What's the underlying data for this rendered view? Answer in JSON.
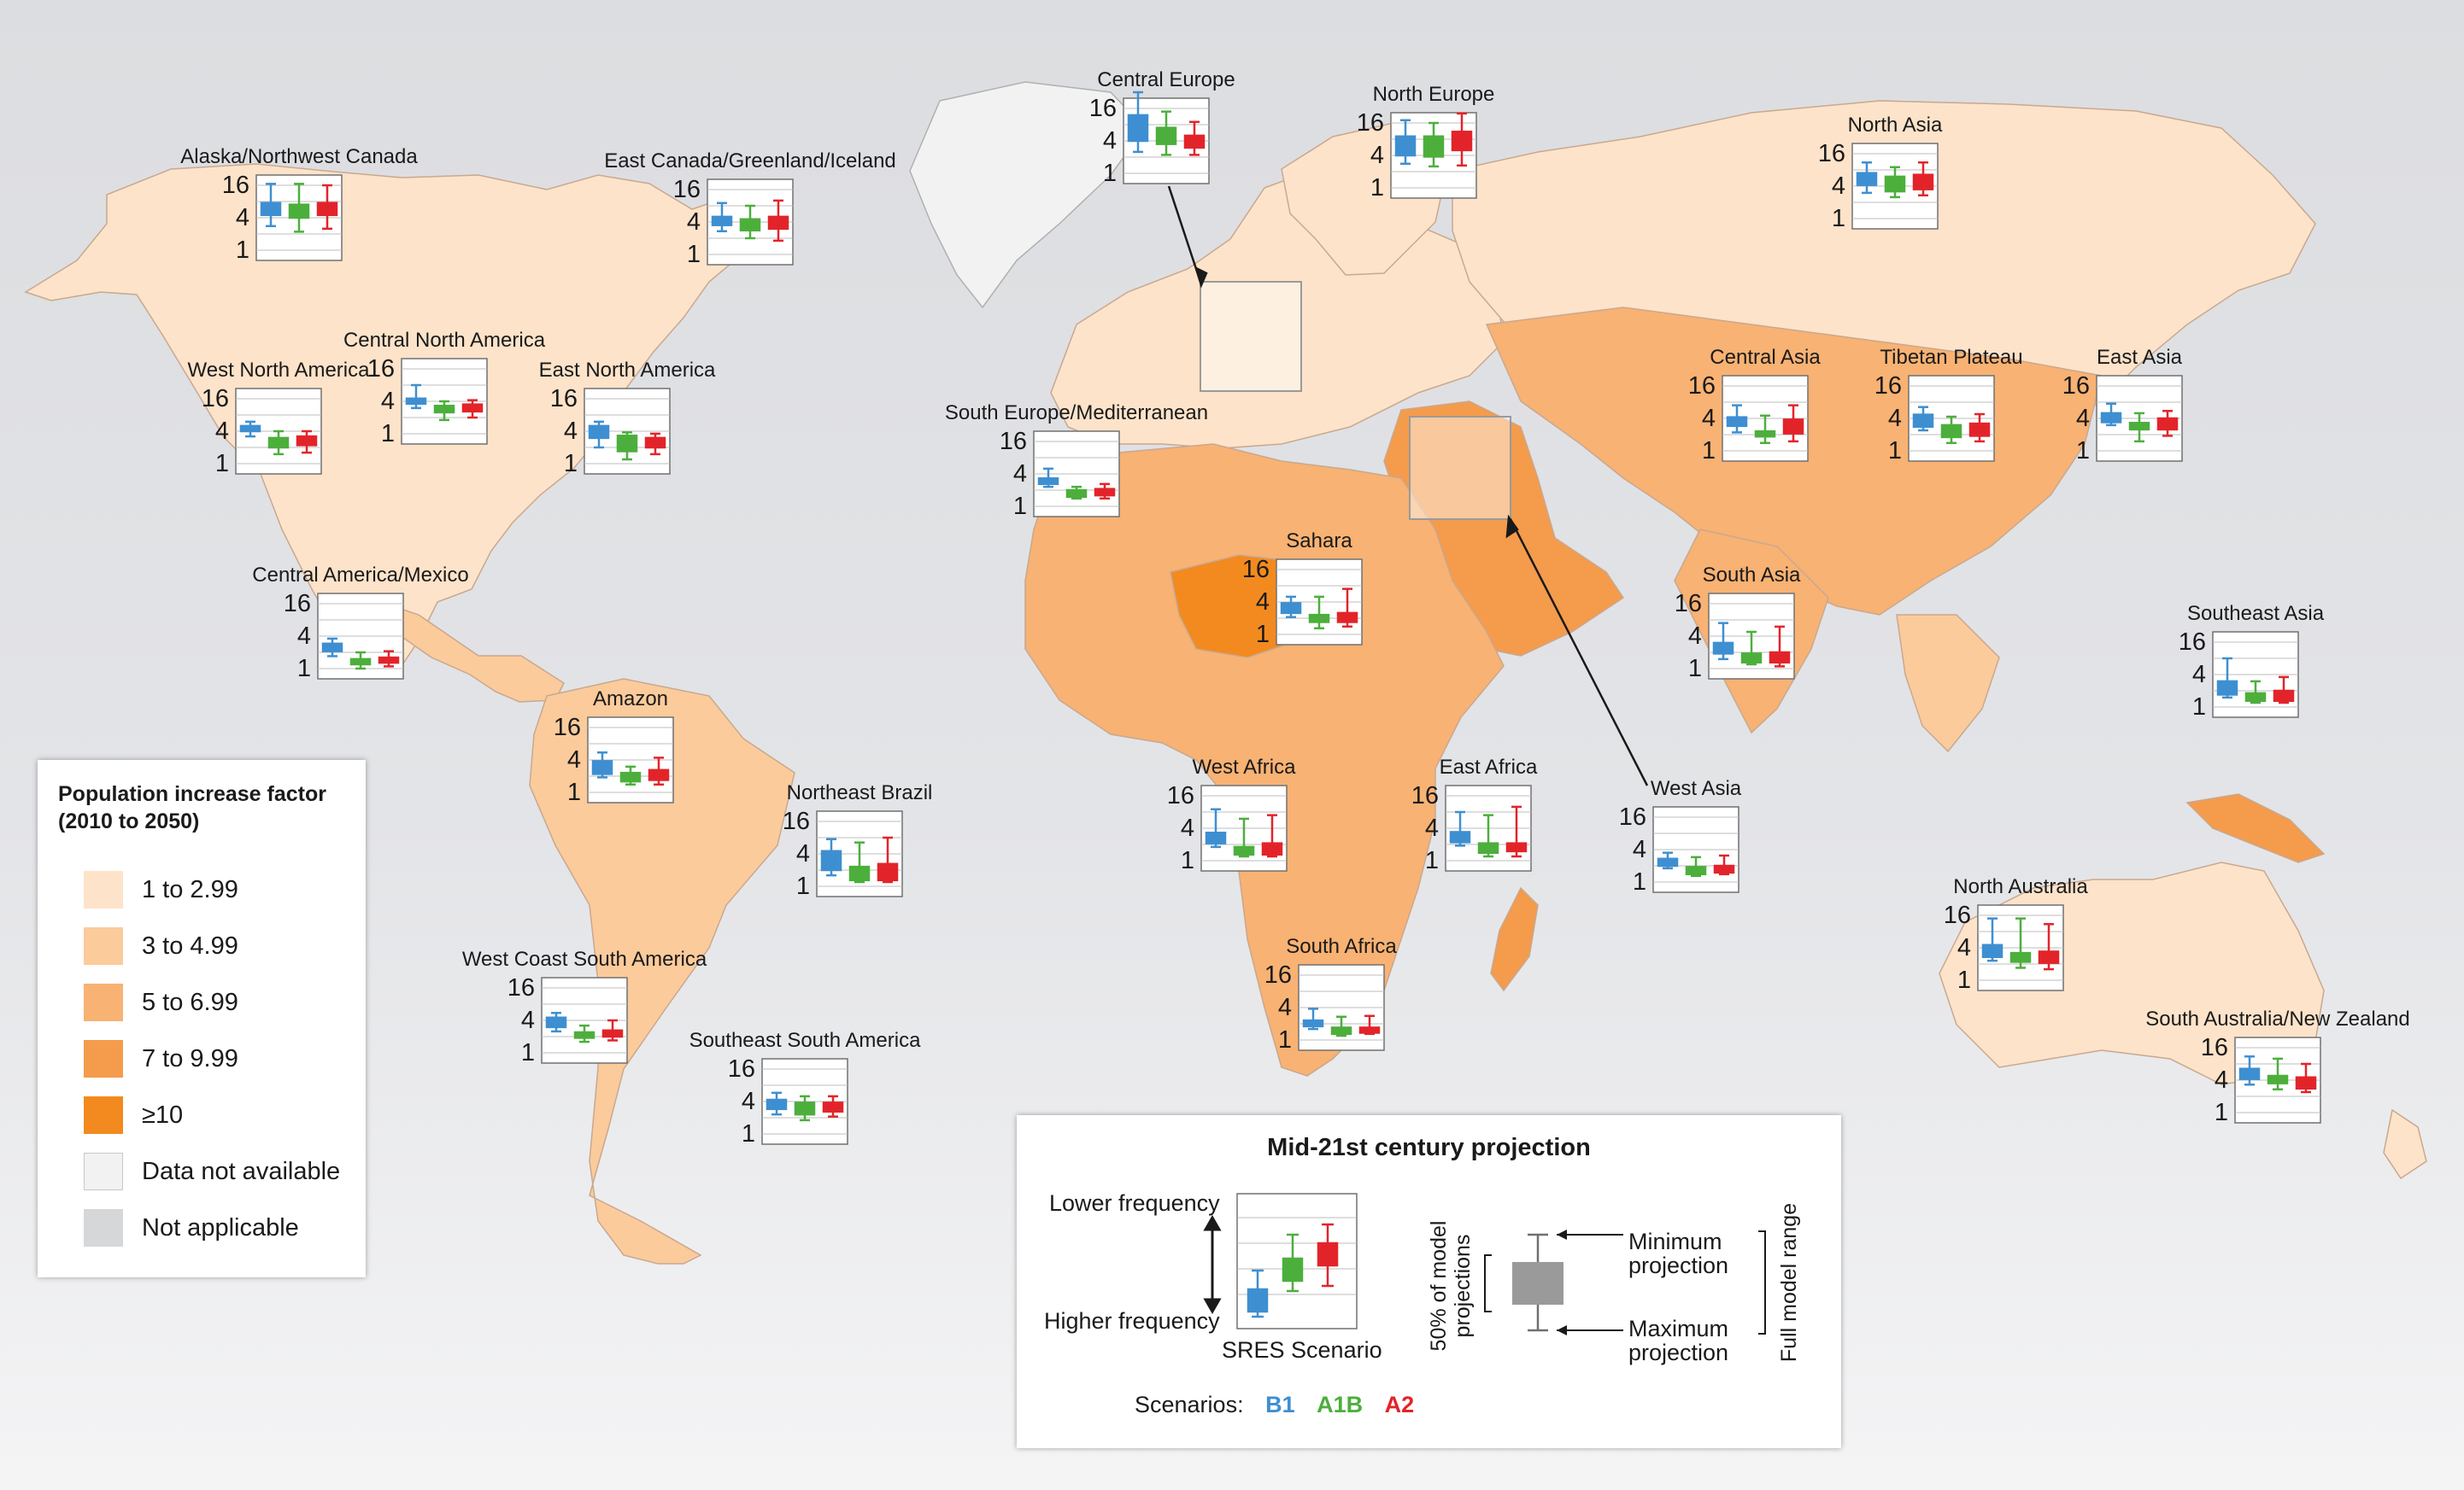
{
  "colors": {
    "ocean": "#e0e1e4",
    "c1": "#fde3c9",
    "c2": "#fbcb9b",
    "c3": "#f8b273",
    "c4": "#f59b4c",
    "c5": "#f28a1f",
    "na": "#f2f2f2",
    "notapp": "#d6d7d9",
    "b1": "#3e8fd1",
    "a1b": "#4caf3c",
    "a2": "#e2242a"
  },
  "legend": {
    "title_line1": "Population increase factor",
    "title_line2": "(2010 to 2050)",
    "items": [
      {
        "label": "1 to 2.99",
        "color": "#fde3c9"
      },
      {
        "label": "3 to 4.99",
        "color": "#fbcb9b"
      },
      {
        "label": "5 to 6.99",
        "color": "#f8b273"
      },
      {
        "label": "7 to 9.99",
        "color": "#f59b4c"
      },
      {
        "label": "≥10",
        "color": "#f28a1f"
      },
      {
        "label": "Data not available",
        "color": "#f2f2f2"
      },
      {
        "label": "Not applicable",
        "color": "#d6d7d9"
      }
    ]
  },
  "explainer": {
    "title": "Mid-21st century projection",
    "lower": "Lower frequency",
    "higher": "Higher frequency",
    "sres": "SRES Scenario",
    "fifty_line1": "50% of model",
    "fifty_line2": "projections",
    "min_line1": "Minimum",
    "min_line2": "projection",
    "max_line1": "Maximum",
    "max_line2": "projection",
    "full_range": "Full model range",
    "scenarios_label": "Scenarios:",
    "b1": "B1",
    "a1b": "A1B",
    "a2": "A2"
  },
  "chart_data": {
    "type": "box",
    "y_scale": "log2",
    "yticks": [
      "16",
      "4",
      "1"
    ],
    "scenarios": [
      "B1",
      "A1B",
      "A2"
    ],
    "regions": [
      {
        "name": "Alaska/Northwest Canada",
        "boxes": [
          [
            2.8,
            4.5,
            7.5,
            17
          ],
          [
            2.2,
            4,
            7,
            17
          ],
          [
            2.5,
            4.5,
            7.5,
            16
          ]
        ]
      },
      {
        "name": "East Canada/Greenland/Iceland",
        "boxes": [
          [
            2.7,
            3.5,
            5,
            9
          ],
          [
            2,
            2.8,
            4.5,
            8
          ],
          [
            1.8,
            3,
            5,
            10
          ]
        ]
      },
      {
        "name": "Central Europe",
        "boxes": [
          [
            2.5,
            4,
            12,
            32
          ],
          [
            2.2,
            3.5,
            7,
            14
          ],
          [
            2.2,
            3,
            5,
            9
          ]
        ]
      },
      {
        "name": "North Europe",
        "boxes": [
          [
            2.8,
            4,
            9,
            18
          ],
          [
            2.5,
            3.8,
            9,
            16
          ],
          [
            2.6,
            5,
            11,
            24
          ]
        ]
      },
      {
        "name": "North Asia",
        "boxes": [
          [
            3,
            4.2,
            7,
            11
          ],
          [
            2.5,
            3.2,
            6,
            9
          ],
          [
            2.7,
            3.5,
            6.5,
            11
          ]
        ]
      },
      {
        "name": "West North America",
        "boxes": [
          [
            3.2,
            4,
            5,
            6
          ],
          [
            1.5,
            2,
            3,
            4
          ],
          [
            1.6,
            2.2,
            3.2,
            4
          ]
        ]
      },
      {
        "name": "Central North America",
        "boxes": [
          [
            3,
            3.8,
            4.5,
            8
          ],
          [
            1.8,
            2.5,
            3.3,
            4
          ],
          [
            2,
            2.6,
            3.5,
            4.2
          ]
        ]
      },
      {
        "name": "East North America",
        "boxes": [
          [
            2,
            3,
            5,
            6
          ],
          [
            1.2,
            1.7,
            3.3,
            3.8
          ],
          [
            1.5,
            2,
            3,
            3.6
          ]
        ]
      },
      {
        "name": "Central America/Mexico",
        "boxes": [
          [
            1.7,
            2.1,
            2.9,
            3.6
          ],
          [
            1,
            1.2,
            1.5,
            2
          ],
          [
            1.1,
            1.3,
            1.6,
            2.1
          ]
        ]
      },
      {
        "name": "South Europe/Mediterranean",
        "boxes": [
          [
            2.3,
            2.6,
            3.3,
            5
          ],
          [
            1.4,
            1.5,
            2,
            2.3
          ],
          [
            1.4,
            1.6,
            2.1,
            2.6
          ]
        ]
      },
      {
        "name": "Sahara",
        "boxes": [
          [
            2.1,
            2.5,
            3.8,
            5
          ],
          [
            1.3,
            1.7,
            2.3,
            5
          ],
          [
            1.4,
            1.7,
            2.5,
            7
          ]
        ]
      },
      {
        "name": "Central Asia",
        "boxes": [
          [
            2.2,
            2.9,
            4.2,
            7
          ],
          [
            1.4,
            2,
            2.3,
            4.5
          ],
          [
            1.5,
            2.1,
            3.8,
            7
          ]
        ]
      },
      {
        "name": "Tibetan Plateau",
        "boxes": [
          [
            2.4,
            2.8,
            4.7,
            6.5
          ],
          [
            1.4,
            1.8,
            3,
            4.3
          ],
          [
            1.5,
            1.9,
            3.2,
            4.8
          ]
        ]
      },
      {
        "name": "East Asia",
        "boxes": [
          [
            3,
            3.4,
            5,
            7.5
          ],
          [
            1.5,
            2.5,
            3.3,
            5
          ],
          [
            1.9,
            2.5,
            4,
            5.5
          ]
        ]
      },
      {
        "name": "South Asia",
        "boxes": [
          [
            1.5,
            1.9,
            3,
            7
          ],
          [
            1.2,
            1.3,
            1.9,
            4.8
          ],
          [
            1.1,
            1.3,
            2,
            6
          ]
        ]
      },
      {
        "name": "Southeast Asia",
        "boxes": [
          [
            1.5,
            1.7,
            3,
            8
          ],
          [
            1.2,
            1.3,
            1.8,
            3
          ],
          [
            1.2,
            1.3,
            2,
            3.6
          ]
        ]
      },
      {
        "name": "Amazon",
        "boxes": [
          [
            1.9,
            2.2,
            3.8,
            5.5
          ],
          [
            1.4,
            1.6,
            2.3,
            3
          ],
          [
            1.4,
            1.7,
            2.6,
            4.4
          ]
        ]
      },
      {
        "name": "Northeast Brazil",
        "boxes": [
          [
            1.6,
            2,
            4.5,
            7.5
          ],
          [
            1.2,
            1.3,
            2.3,
            6.5
          ],
          [
            1.2,
            1.3,
            2.6,
            8
          ]
        ]
      },
      {
        "name": "West Africa",
        "boxes": [
          [
            1.8,
            2.1,
            3.3,
            9
          ],
          [
            1.2,
            1.3,
            1.8,
            6
          ],
          [
            1.2,
            1.3,
            2.1,
            7
          ]
        ]
      },
      {
        "name": "East Africa",
        "boxes": [
          [
            1.9,
            2.2,
            3.4,
            8
          ],
          [
            1.2,
            1.4,
            2.1,
            7
          ],
          [
            1.2,
            1.5,
            2.1,
            10
          ]
        ]
      },
      {
        "name": "West Asia",
        "boxes": [
          [
            1.8,
            2,
            2.7,
            3.5
          ],
          [
            1.3,
            1.4,
            1.9,
            2.9
          ],
          [
            1.4,
            1.5,
            2,
            3.1
          ]
        ]
      },
      {
        "name": "West Coast South America",
        "boxes": [
          [
            2.5,
            3,
            4.5,
            5.5
          ],
          [
            1.6,
            1.9,
            2.4,
            3.2
          ],
          [
            1.7,
            2,
            2.6,
            4
          ]
        ]
      },
      {
        "name": "Southeast South America",
        "boxes": [
          [
            2.3,
            2.9,
            4.3,
            5.8
          ],
          [
            1.8,
            2.3,
            3.8,
            5
          ],
          [
            2.1,
            2.6,
            3.8,
            5
          ]
        ]
      },
      {
        "name": "South Africa",
        "boxes": [
          [
            1.6,
            1.8,
            2.3,
            3.8
          ],
          [
            1.2,
            1.3,
            1.7,
            2.7
          ],
          [
            1.3,
            1.4,
            1.7,
            2.8
          ]
        ]
      },
      {
        "name": "North Australia",
        "boxes": [
          [
            2.3,
            2.7,
            4.5,
            14
          ],
          [
            1.7,
            2.2,
            3.2,
            14
          ],
          [
            1.6,
            2.1,
            3.4,
            11
          ]
        ]
      },
      {
        "name": "South Australia/New Zealand",
        "boxes": [
          [
            3.3,
            4.2,
            6.5,
            11
          ],
          [
            2.7,
            3.5,
            4.8,
            10
          ],
          [
            2.4,
            2.8,
            4.5,
            8
          ]
        ]
      }
    ]
  }
}
